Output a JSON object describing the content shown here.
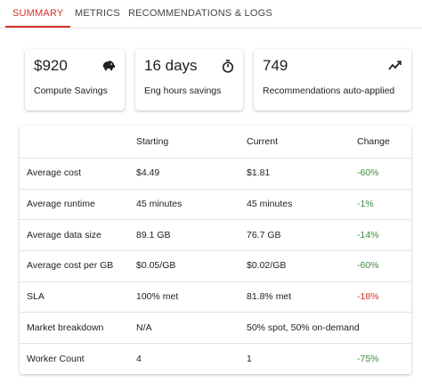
{
  "tabs": [
    {
      "label": "SUMMARY",
      "active": true
    },
    {
      "label": "METRICS",
      "active": false
    },
    {
      "label": "RECOMMENDATIONS & LOGS",
      "active": false
    }
  ],
  "cards": [
    {
      "value": "$920",
      "label": "Compute Savings"
    },
    {
      "value": "16 days",
      "label": "Eng hours savings"
    },
    {
      "value": "749",
      "label": "Recommendations auto-applied"
    }
  ],
  "table": {
    "header": [
      null,
      "Starting",
      "Current",
      "Change"
    ],
    "rows": [
      [
        "Average cost",
        "$4.49",
        "$1.81",
        "-60%"
      ],
      [
        "Average runtime",
        "45 minutes",
        "45 minutes",
        "-1%"
      ],
      [
        "Average data size",
        "89.1 GB",
        "76.7 GB",
        "-14%"
      ],
      [
        "Average cost per GB",
        "$0.05/GB",
        "$0.02/GB",
        "-60%"
      ],
      [
        "SLA",
        "100% met",
        "81.8% met",
        "-18%"
      ],
      [
        "Market breakdown",
        "N/A",
        "50% spot, 50% on-demand",
        null
      ],
      [
        "Worker Count",
        "4",
        "1",
        "-75%"
      ]
    ],
    "change_colors": [
      "#3d8b3d",
      "#3d8b3d",
      "#3d8b3d",
      "#3d8b3d",
      "#d93025",
      null,
      "#3d8b3d"
    ]
  }
}
